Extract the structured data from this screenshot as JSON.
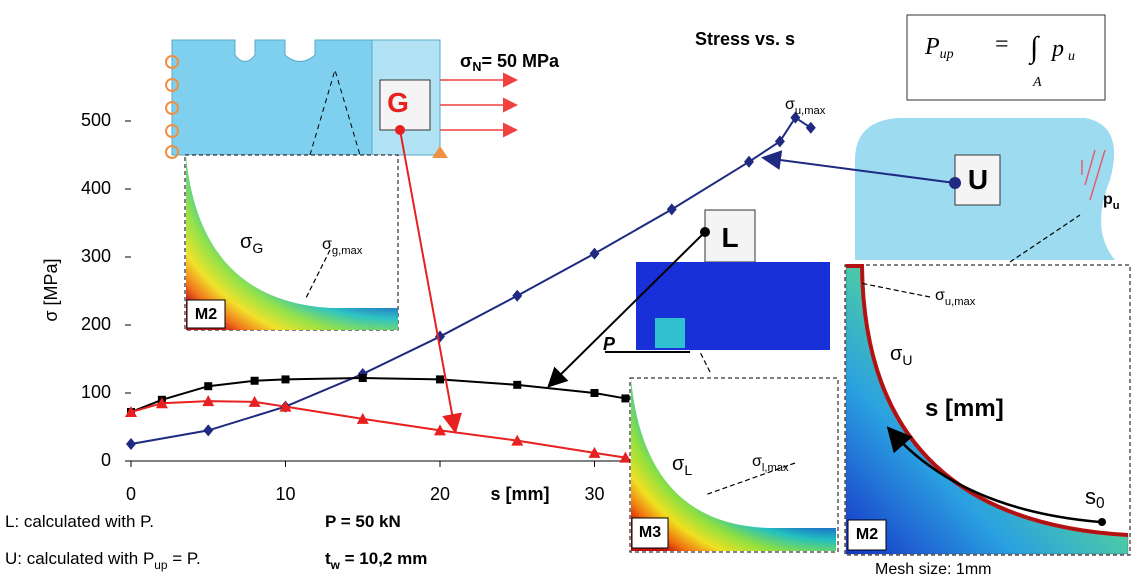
{
  "chart_data": {
    "type": "line",
    "title": "Stress vs. s",
    "x_label": "s [mm]",
    "y_label": "σ  [MPa]",
    "xlim": [
      0,
      45
    ],
    "ylim": [
      0,
      500
    ],
    "xticks": [
      0,
      10,
      20,
      30
    ],
    "yticks": [
      0,
      100,
      200,
      300,
      400,
      500
    ],
    "series": [
      {
        "name": "U",
        "color": "#1f2a80",
        "marker": "diamond",
        "x": [
          0,
          5,
          10,
          15,
          20,
          25,
          30,
          35,
          40,
          42,
          43,
          44
        ],
        "values": [
          25,
          45,
          80,
          128,
          183,
          243,
          305,
          370,
          440,
          470,
          505,
          490
        ]
      },
      {
        "name": "L",
        "color": "#000000",
        "marker": "square",
        "x": [
          0,
          2,
          5,
          8,
          10,
          15,
          20,
          25,
          30,
          32
        ],
        "values": [
          72,
          90,
          110,
          118,
          120,
          122,
          120,
          112,
          100,
          92
        ]
      },
      {
        "name": "G",
        "color": "#e82020",
        "marker": "triangle",
        "x": [
          0,
          2,
          5,
          8,
          10,
          15,
          20,
          25,
          30,
          32
        ],
        "values": [
          72,
          85,
          88,
          87,
          80,
          62,
          45,
          30,
          12,
          5
        ]
      }
    ],
    "annotations": [
      {
        "text": "σ",
        "sub": "N",
        "after": "= 50 MPa"
      },
      {
        "text": "G"
      },
      {
        "text": "L"
      },
      {
        "text": "U"
      },
      {
        "text": "σ",
        "sub": "u,max"
      },
      {
        "text": "σ",
        "sub": "G"
      },
      {
        "text": "σ",
        "sub": "g,max"
      },
      {
        "text": "M2"
      },
      {
        "text": "P"
      },
      {
        "text": "M3"
      },
      {
        "text": "σ",
        "sub": "L"
      },
      {
        "text": "σ",
        "sub": "l,max"
      },
      {
        "text": "σ",
        "sub": "U"
      },
      {
        "text": "σ",
        "sub": "u,max"
      },
      {
        "text": "s [mm]"
      },
      {
        "text": "s",
        "sub": "0"
      },
      {
        "text": "M2"
      },
      {
        "text": "p",
        "sub": "u"
      },
      {
        "text": "Mesh size: 1mm"
      },
      {
        "text": "L: calculated with P."
      },
      {
        "text": "U: calculated with P",
        "sub": "up",
        "after": " = P."
      },
      {
        "text": "P = 50 kN"
      },
      {
        "text": "t",
        "sub": "w",
        "after": " = 10,2 mm"
      }
    ],
    "formula": {
      "lhs": "P",
      "lhs_sub": "up",
      "eq": "=",
      "integral": "∫",
      "domain": "A",
      "integrand": "p",
      "integrand_sub": "u"
    }
  }
}
